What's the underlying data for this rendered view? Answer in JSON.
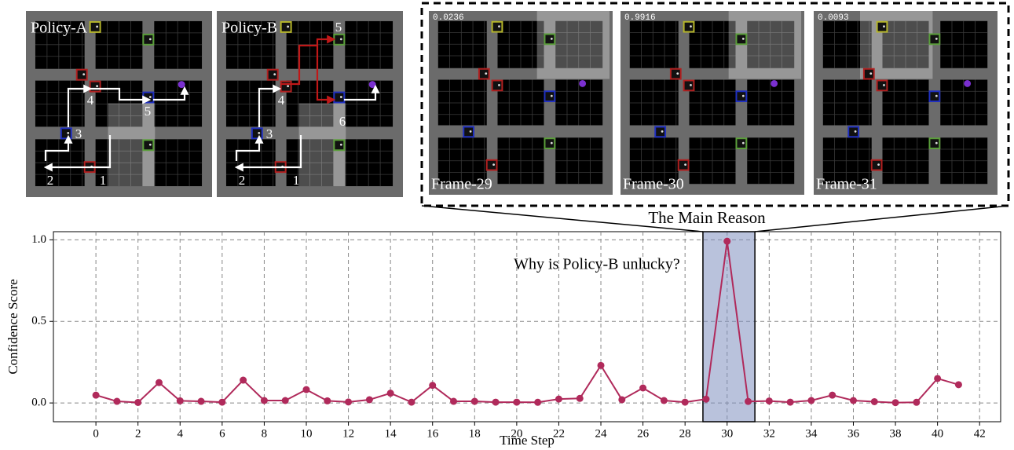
{
  "panels": [
    {
      "label": "Policy-A",
      "steps": [
        1,
        2,
        3,
        4,
        5
      ]
    },
    {
      "label": "Policy-B",
      "steps": [
        1,
        2,
        3,
        4,
        5,
        6
      ]
    }
  ],
  "zoom": {
    "caption": "The Main Reason",
    "frames": [
      {
        "label": "Frame-29",
        "score": 0.0236
      },
      {
        "label": "Frame-30",
        "score": 0.9916
      },
      {
        "label": "Frame-31",
        "score": 0.0093
      }
    ]
  },
  "chart_data": {
    "type": "line",
    "ylabel": "Confidence Score",
    "xlabel": "Time Step",
    "annotation": "Why is Policy-B unlucky?",
    "x": [
      0,
      1,
      2,
      3,
      4,
      5,
      6,
      7,
      8,
      9,
      10,
      11,
      12,
      13,
      14,
      15,
      16,
      17,
      18,
      19,
      20,
      21,
      22,
      23,
      24,
      25,
      26,
      27,
      28,
      29,
      30,
      31,
      32,
      33,
      34,
      35,
      36,
      37,
      38,
      39,
      40,
      41
    ],
    "values": [
      0.048,
      0.01,
      0.003,
      0.125,
      0.013,
      0.01,
      0.005,
      0.14,
      0.015,
      0.015,
      0.082,
      0.013,
      0.006,
      0.02,
      0.06,
      0.005,
      0.108,
      0.01,
      0.01,
      0.005,
      0.005,
      0.004,
      0.024,
      0.028,
      0.23,
      0.02,
      0.092,
      0.015,
      0.005,
      0.0236,
      0.9916,
      0.0093,
      0.012,
      0.005,
      0.015,
      0.048,
      0.015,
      0.008,
      0.002,
      0.004,
      0.15,
      0.112
    ],
    "color": "#b02a5b",
    "highlight": [
      28.85,
      31.32
    ],
    "xlim": [
      -2.02,
      43
    ],
    "ylim": [
      -0.115,
      1.05
    ],
    "xticks": [
      0,
      2,
      4,
      6,
      8,
      10,
      12,
      14,
      16,
      18,
      20,
      22,
      24,
      26,
      28,
      30,
      32,
      34,
      36,
      38,
      40,
      42
    ],
    "yticks": [
      {
        "value": 0,
        "label": "0.0"
      },
      0.5,
      {
        "value": 1,
        "label": "1.0"
      }
    ],
    "grid": true
  }
}
